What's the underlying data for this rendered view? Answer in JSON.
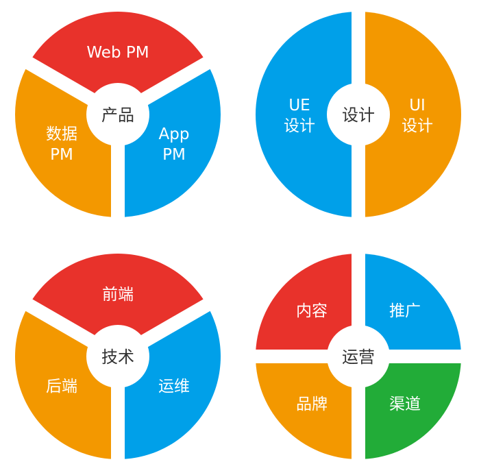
{
  "colors": {
    "red": "#e8322b",
    "orange": "#f39800",
    "blue": "#00a0e9",
    "green": "#22ac38",
    "center_text": "#333333"
  },
  "diagrams": [
    {
      "center": "产品",
      "segments": [
        {
          "label": [
            "Web PM"
          ],
          "color": "#e8322b"
        },
        {
          "label": [
            "App",
            "PM"
          ],
          "color": "#00a0e9"
        },
        {
          "label": [
            "数据",
            "PM"
          ],
          "color": "#f39800"
        }
      ]
    },
    {
      "center": "设计",
      "segments": [
        {
          "label": [
            "UI",
            "设计"
          ],
          "color": "#f39800"
        },
        {
          "label": [
            "UE",
            "设计"
          ],
          "color": "#00a0e9"
        }
      ]
    },
    {
      "center": "技术",
      "segments": [
        {
          "label": [
            "前端"
          ],
          "color": "#e8322b"
        },
        {
          "label": [
            "运维"
          ],
          "color": "#00a0e9"
        },
        {
          "label": [
            "后端"
          ],
          "color": "#f39800"
        }
      ]
    },
    {
      "center": "运营",
      "segments": [
        {
          "label": [
            "推广"
          ],
          "color": "#00a0e9"
        },
        {
          "label": [
            "渠道"
          ],
          "color": "#22ac38"
        },
        {
          "label": [
            "品牌"
          ],
          "color": "#f39800"
        },
        {
          "label": [
            "内容"
          ],
          "color": "#e8322b"
        }
      ]
    }
  ]
}
